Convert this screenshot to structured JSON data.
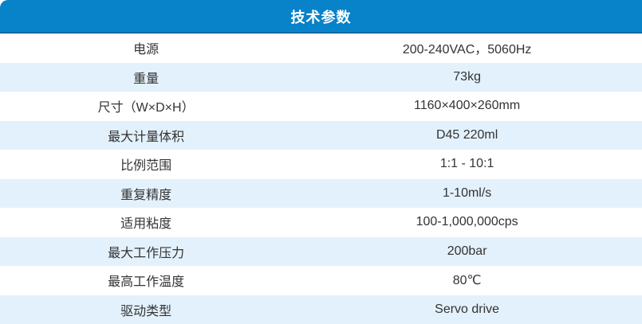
{
  "colors": {
    "accent": "#0882C8",
    "row_alt": "#E3F1FC",
    "header_border": "#1D3D5C",
    "text": "#333333"
  },
  "header": {
    "title": "技术参数"
  },
  "table": {
    "rows": [
      {
        "label": "电源",
        "value": "200-240VAC，5060Hz"
      },
      {
        "label": "重量",
        "value": "73kg"
      },
      {
        "label": "尺寸（W×D×H）",
        "value": "1160×400×260mm"
      },
      {
        "label": "最大计量体积",
        "value": "D45 220ml"
      },
      {
        "label": "比例范围",
        "value": "1:1 - 10:1"
      },
      {
        "label": "重复精度",
        "value": "1-10ml/s"
      },
      {
        "label": "适用粘度",
        "value": "100-1,000,000cps"
      },
      {
        "label": "最大工作压力",
        "value": "200bar"
      },
      {
        "label": "最高工作温度",
        "value": "80℃"
      },
      {
        "label": "驱动类型",
        "value": "Servo drive"
      }
    ]
  }
}
